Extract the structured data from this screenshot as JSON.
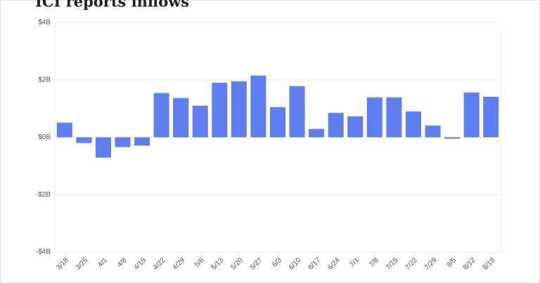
{
  "chart_data": {
    "type": "bar",
    "title": "ICI reports inflows",
    "categories": [
      "3/18",
      "3/25",
      "4/1",
      "4/8",
      "4/15",
      "4/22",
      "4/29",
      "5/6",
      "5/13",
      "5/20",
      "5/27",
      "6/3",
      "6/10",
      "6/17",
      "6/24",
      "7/1",
      "7/8",
      "7/15",
      "7/22",
      "7/29",
      "8/5",
      "8/12",
      "8/19"
    ],
    "values": [
      0.51,
      -0.2,
      -0.71,
      -0.34,
      -0.29,
      1.54,
      1.37,
      1.1,
      1.9,
      1.95,
      2.15,
      1.05,
      1.78,
      0.29,
      0.85,
      0.73,
      1.39,
      1.39,
      0.9,
      0.41,
      -0.05,
      1.56,
      1.41
    ],
    "color": "#5f7ef2",
    "ylim": [
      -4,
      4
    ],
    "yticks": [
      {
        "value": -4,
        "label": "-$4B"
      },
      {
        "value": -2,
        "label": "-$2B"
      },
      {
        "value": 0,
        "label": "$0B"
      },
      {
        "value": 2,
        "label": "$2B"
      },
      {
        "value": 4,
        "label": "$4B"
      }
    ],
    "grid": true
  }
}
